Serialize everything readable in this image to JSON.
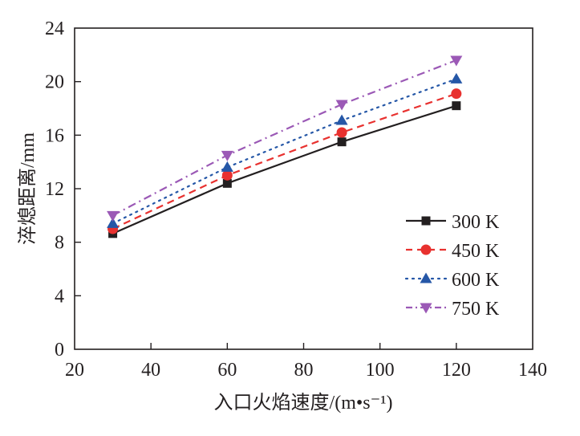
{
  "chart_data": {
    "type": "line",
    "title": "",
    "xlabel": "入口火焰速度/(m•s⁻¹)",
    "ylabel": "淬熄距离/mm",
    "xlim": [
      20,
      140
    ],
    "ylim": [
      0,
      24
    ],
    "xticks": [
      20,
      40,
      60,
      80,
      100,
      120,
      140
    ],
    "yticks": [
      0,
      4,
      8,
      12,
      16,
      20,
      24
    ],
    "grid": false,
    "legend_position": "right",
    "x": [
      30,
      60,
      90,
      120
    ],
    "series": [
      {
        "name": "300 K",
        "values": [
          8.65,
          12.4,
          15.5,
          18.2
        ],
        "color": "#231f20",
        "dash": "solid",
        "marker": "square"
      },
      {
        "name": "450 K",
        "values": [
          9.0,
          13.0,
          16.2,
          19.1
        ],
        "color": "#e8312f",
        "dash": "dashed",
        "marker": "circle"
      },
      {
        "name": "600 K",
        "values": [
          9.4,
          13.6,
          17.1,
          20.2
        ],
        "color": "#2557a7",
        "dash": "dotted",
        "marker": "triangle-up"
      },
      {
        "name": "750 K",
        "values": [
          10.0,
          14.5,
          18.3,
          21.6
        ],
        "color": "#9b59b6",
        "dash": "dash-dot",
        "marker": "triangle-down"
      }
    ]
  }
}
